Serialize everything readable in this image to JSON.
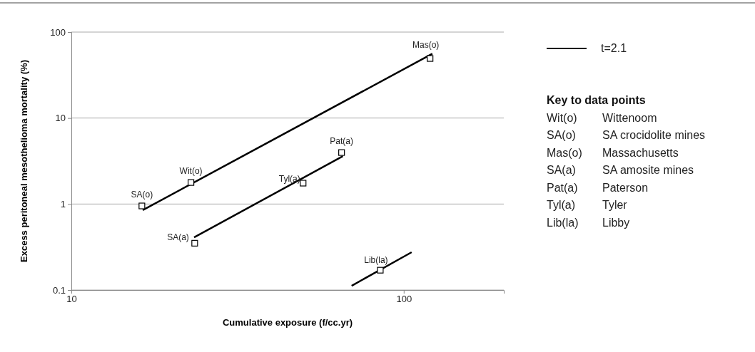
{
  "chart_data": {
    "type": "scatter",
    "xlabel": "Cumulative exposure (f/cc.yr)",
    "ylabel": "Excess peritoneal mesothelioma mortality (%)",
    "log": "xy",
    "xlim": [
      10,
      200
    ],
    "xticks": [
      10,
      100
    ],
    "ylim": [
      0.1,
      100
    ],
    "yticks": [
      0.1,
      1,
      10,
      100
    ],
    "grid": "y",
    "legend": "top right",
    "series": [
      {
        "type": "line",
        "name": "t=2.1",
        "color": "#000000",
        "x": [
          16.4,
          121.9
        ],
        "values": [
          0.85,
          56
        ]
      },
      {
        "type": "line",
        "color": "#000000",
        "x": [
          23.4,
          65.6
        ],
        "values": [
          0.41,
          3.6
        ]
      },
      {
        "type": "line",
        "color": "#000000",
        "x": [
          69.7,
          105.6
        ],
        "values": [
          0.112,
          0.275
        ]
      },
      {
        "color": "#000000",
        "marker": "square",
        "x": [
          16.3,
          22.9,
          120,
          23.5,
          49.8,
          65,
          85
        ],
        "values": [
          0.95,
          1.78,
          49.3,
          0.35,
          1.75,
          3.97,
          0.17
        ]
      }
    ],
    "annotations": [
      {
        "text": "SA(o)",
        "x": 16.3,
        "y": 0.95
      },
      {
        "text": "Wit(o)",
        "x": 22.9,
        "y": 1.78
      },
      {
        "text": "Mas(o)",
        "x": 120,
        "y": 49.3
      },
      {
        "text": "SA(a)",
        "x": 23.5,
        "y": 0.35
      },
      {
        "text": "Tyl(a)",
        "x": 49.8,
        "y": 1.75
      },
      {
        "text": "Pat(a)",
        "x": 65,
        "y": 3.97
      },
      {
        "text": "Lib(la)",
        "x": 85,
        "y": 0.17
      },
      "Key to data points",
      "Wit(o)\tWittenoom",
      "SA(o)\tSA crocidolite mines",
      "Mas(o)\tMassachusetts",
      "SA(a)\tSA amosite mines",
      "Pat(a)\tPaterson",
      "Tyl(a)\tTyler",
      "Lib(la)\tLibby"
    ]
  }
}
